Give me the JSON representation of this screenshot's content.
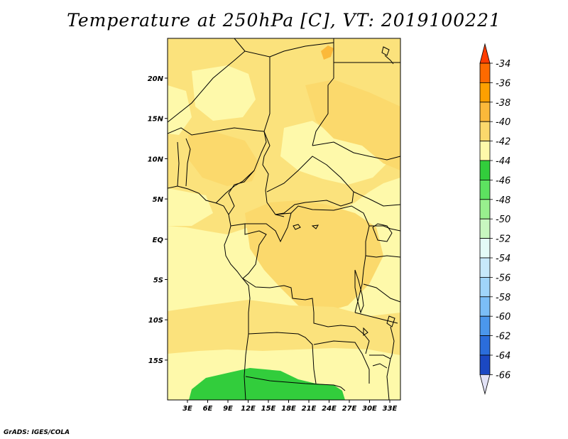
{
  "title": "Temperature at 250hPa [C], VT: 2019100221",
  "credit": "GrADS: IGES/COLA",
  "axes": {
    "lat_labels": [
      "20N",
      "15N",
      "10N",
      "5N",
      "EQ",
      "5S",
      "10S",
      "15S"
    ],
    "lon_labels": [
      "3E",
      "6E",
      "9E",
      "12E",
      "15E",
      "18E",
      "21E",
      "24E",
      "27E",
      "30E",
      "33E"
    ]
  },
  "colorbar": {
    "levels": [
      "-34",
      "-36",
      "-38",
      "-40",
      "-42",
      "-44",
      "-46",
      "-48",
      "-50",
      "-52",
      "-54",
      "-56",
      "-58",
      "-60",
      "-62",
      "-64",
      "-66"
    ],
    "colors": [
      "#ff3c00",
      "#fe6a00",
      "#fea000",
      "#fbb93a",
      "#fbd96c",
      "#fef9aa",
      "#32cd3c",
      "#5de260",
      "#98f08e",
      "#c8f7c0",
      "#e4fbf7",
      "#c7e9fb",
      "#a0d5fa",
      "#7bbef7",
      "#4b97ec",
      "#2b6ddb",
      "#1b48c2",
      "#0a1875",
      "#e2e2f6"
    ]
  },
  "map_colors": {
    "pale": "#fef9aa",
    "light": "#fbe27c",
    "mid": "#fbd96c",
    "warm": "#fbb93a",
    "green": "#32cd3c"
  }
}
